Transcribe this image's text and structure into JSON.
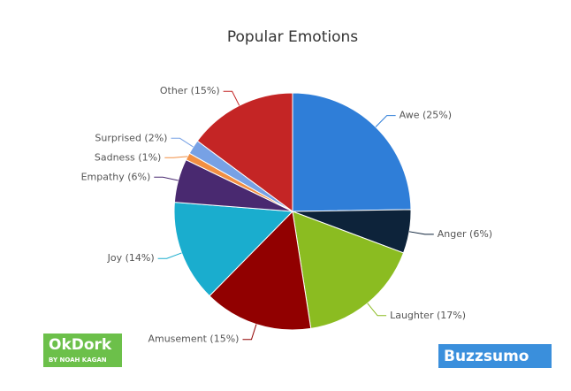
{
  "chart_data": {
    "type": "pie",
    "title": "Popular Emotions",
    "categories": [
      "Awe (25%)",
      "Anger (6%)",
      "Laughter (17%)",
      "Amusement (15%)",
      "Joy (14%)",
      "Empathy (6%)",
      "Sadness (1%)",
      "Surprised (2%)",
      "Other (15%)"
    ],
    "values": [
      25,
      6,
      17,
      15,
      14,
      6,
      1,
      2,
      15
    ],
    "colors": [
      "#2f7ed8",
      "#0d233a",
      "#8bbc21",
      "#910000",
      "#1aadce",
      "#492970",
      "#f28f43",
      "#77a1e5",
      "#c42525"
    ]
  },
  "logos": {
    "left": "OkDork",
    "left_sub": "BY NOAH KAGAN",
    "right": "Buzzsumo"
  }
}
